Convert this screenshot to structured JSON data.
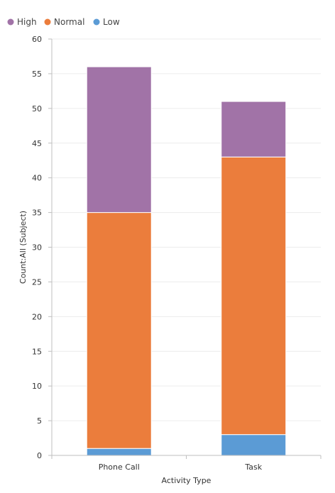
{
  "chart_data": {
    "type": "bar",
    "stacked": true,
    "title": "",
    "xlabel": "Activity Type",
    "ylabel": "Count:All (Subject)",
    "categories": [
      "Phone Call",
      "Task"
    ],
    "series": [
      {
        "name": "High",
        "color": "#A173A7",
        "values": [
          21,
          8
        ]
      },
      {
        "name": "Normal",
        "color": "#EB7D3C",
        "values": [
          34,
          40
        ]
      },
      {
        "name": "Low",
        "color": "#5B9BD5",
        "values": [
          1,
          3
        ]
      }
    ],
    "ylim": [
      0,
      60
    ],
    "yticks": [
      0,
      5,
      10,
      15,
      20,
      25,
      30,
      35,
      40,
      45,
      50,
      55,
      60
    ],
    "grid": true,
    "legend_position": "top-left"
  }
}
